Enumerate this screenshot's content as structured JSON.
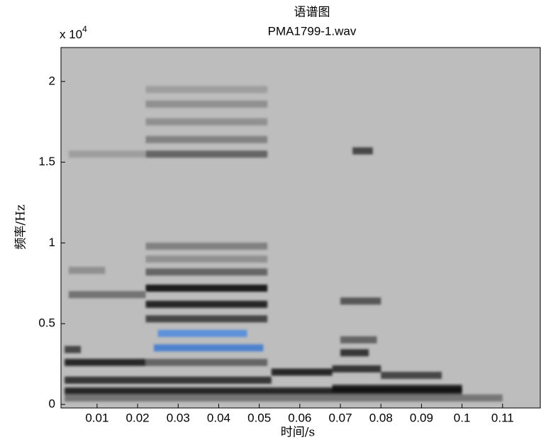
{
  "chart_data": {
    "type": "spectrogram",
    "title": "语谱图",
    "subtitle": "PMA1799-1.wav",
    "x_label": "时间/s",
    "y_label": "频率/Hz",
    "y_multiplier": {
      "base": "x 10",
      "power": "4"
    },
    "background": "#bdbdbd",
    "xlim": [
      0.0011,
      0.1193
    ],
    "ylim": [
      -0.022,
      2.21
    ],
    "xticks": [
      0.01,
      0.02,
      0.03,
      0.04,
      0.05,
      0.06,
      0.07,
      0.08,
      0.09,
      0.1,
      0.11
    ],
    "yticks": [
      0,
      0.5,
      1,
      1.5,
      2
    ],
    "streaks": [
      {
        "x": [
          0.002,
          0.11
        ],
        "y": 0.04,
        "color": "#6a6a6a"
      },
      {
        "x": [
          0.002,
          0.1
        ],
        "y": 0.083,
        "color": "#111111"
      },
      {
        "x": [
          0.002,
          0.053
        ],
        "y": 0.15,
        "color": "#222222"
      },
      {
        "x": [
          0.002,
          0.022
        ],
        "y": 0.26,
        "color": "#111111"
      },
      {
        "x": [
          0.002,
          0.006
        ],
        "y": 0.34,
        "color": "#333333"
      },
      {
        "x": [
          0.022,
          0.052
        ],
        "y": 0.26,
        "color": "#555555"
      },
      {
        "x": [
          0.024,
          0.051
        ],
        "y": 0.35,
        "color": "#3a78d0"
      },
      {
        "x": [
          0.025,
          0.047
        ],
        "y": 0.44,
        "color": "#4a88e0"
      },
      {
        "x": [
          0.022,
          0.052
        ],
        "y": 0.53,
        "color": "#333333"
      },
      {
        "x": [
          0.022,
          0.052
        ],
        "y": 0.62,
        "color": "#111111"
      },
      {
        "x": [
          0.022,
          0.052
        ],
        "y": 0.72,
        "color": "#000000"
      },
      {
        "x": [
          0.022,
          0.052
        ],
        "y": 0.82,
        "color": "#555555"
      },
      {
        "x": [
          0.022,
          0.052
        ],
        "y": 0.9,
        "color": "#888888"
      },
      {
        "x": [
          0.022,
          0.052
        ],
        "y": 0.98,
        "color": "#777777"
      },
      {
        "x": [
          0.053,
          0.068
        ],
        "y": 0.2,
        "color": "#111111"
      },
      {
        "x": [
          0.068,
          0.1
        ],
        "y": 0.1,
        "color": "#111111"
      },
      {
        "x": [
          0.068,
          0.08
        ],
        "y": 0.22,
        "color": "#222222"
      },
      {
        "x": [
          0.08,
          0.095
        ],
        "y": 0.18,
        "color": "#333333"
      },
      {
        "x": [
          0.07,
          0.077
        ],
        "y": 0.32,
        "color": "#222222"
      },
      {
        "x": [
          0.07,
          0.079
        ],
        "y": 0.4,
        "color": "#555555"
      },
      {
        "x": [
          0.07,
          0.08
        ],
        "y": 0.64,
        "color": "#444444"
      },
      {
        "x": [
          0.073,
          0.078
        ],
        "y": 1.57,
        "color": "#333333"
      },
      {
        "x": [
          0.022,
          0.052
        ],
        "y": 1.55,
        "color": "#555555"
      },
      {
        "x": [
          0.022,
          0.052
        ],
        "y": 1.64,
        "color": "#777777"
      },
      {
        "x": [
          0.022,
          0.052
        ],
        "y": 1.75,
        "color": "#888888"
      },
      {
        "x": [
          0.022,
          0.052
        ],
        "y": 1.86,
        "color": "#888888"
      },
      {
        "x": [
          0.022,
          0.052
        ],
        "y": 1.95,
        "color": "#999999"
      },
      {
        "x": [
          0.003,
          0.022
        ],
        "y": 1.55,
        "color": "#999999"
      },
      {
        "x": [
          0.003,
          0.022
        ],
        "y": 0.68,
        "color": "#666666"
      },
      {
        "x": [
          0.003,
          0.012
        ],
        "y": 0.83,
        "color": "#888888"
      }
    ]
  }
}
